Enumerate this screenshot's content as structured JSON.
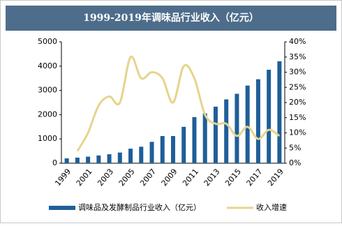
{
  "chart_data": {
    "type": "bar-line",
    "title": "1999-2019年调味品行业收入（亿元）",
    "categories": [
      "1999",
      null,
      "2001",
      null,
      "2003",
      null,
      "2005",
      null,
      "2007",
      null,
      "2009",
      null,
      "2011",
      null,
      "2013",
      null,
      "2015",
      null,
      "2017",
      null,
      "2019"
    ],
    "series": [
      {
        "name": "调味品及发酵制品行业收入（亿元）",
        "color": "#1f5e99",
        "type": "bar",
        "values": [
          200,
          230,
          270,
          320,
          370,
          440,
          600,
          680,
          880,
          1120,
          1120,
          1500,
          1900,
          2050,
          2330,
          2630,
          2860,
          3200,
          3460,
          3850,
          4200
        ]
      },
      {
        "name": "收入增速",
        "color": "#e6d48c",
        "type": "line",
        "axis": "y2",
        "values": [
          null,
          4,
          10,
          19,
          22,
          20,
          35,
          28,
          30,
          28,
          20,
          32,
          28,
          16,
          13,
          13,
          9,
          12,
          8,
          11,
          9
        ]
      }
    ],
    "ylim": [
      0,
      5000
    ],
    "yticks": [
      0,
      1000,
      2000,
      3000,
      4000,
      5000
    ],
    "y2lim": [
      0,
      40
    ],
    "y2ticks": [
      {
        "value": 0,
        "label": "0%"
      },
      {
        "value": 5,
        "label": "5%"
      },
      {
        "value": 10,
        "label": "10%"
      },
      {
        "value": 15,
        "label": "15%"
      },
      {
        "value": 20,
        "label": "20%"
      },
      {
        "value": 25,
        "label": "25%"
      },
      {
        "value": 30,
        "label": "30%"
      },
      {
        "value": 35,
        "label": "35%"
      },
      {
        "value": 40,
        "label": "40%"
      }
    ],
    "grid": false,
    "legend": "bottom"
  }
}
